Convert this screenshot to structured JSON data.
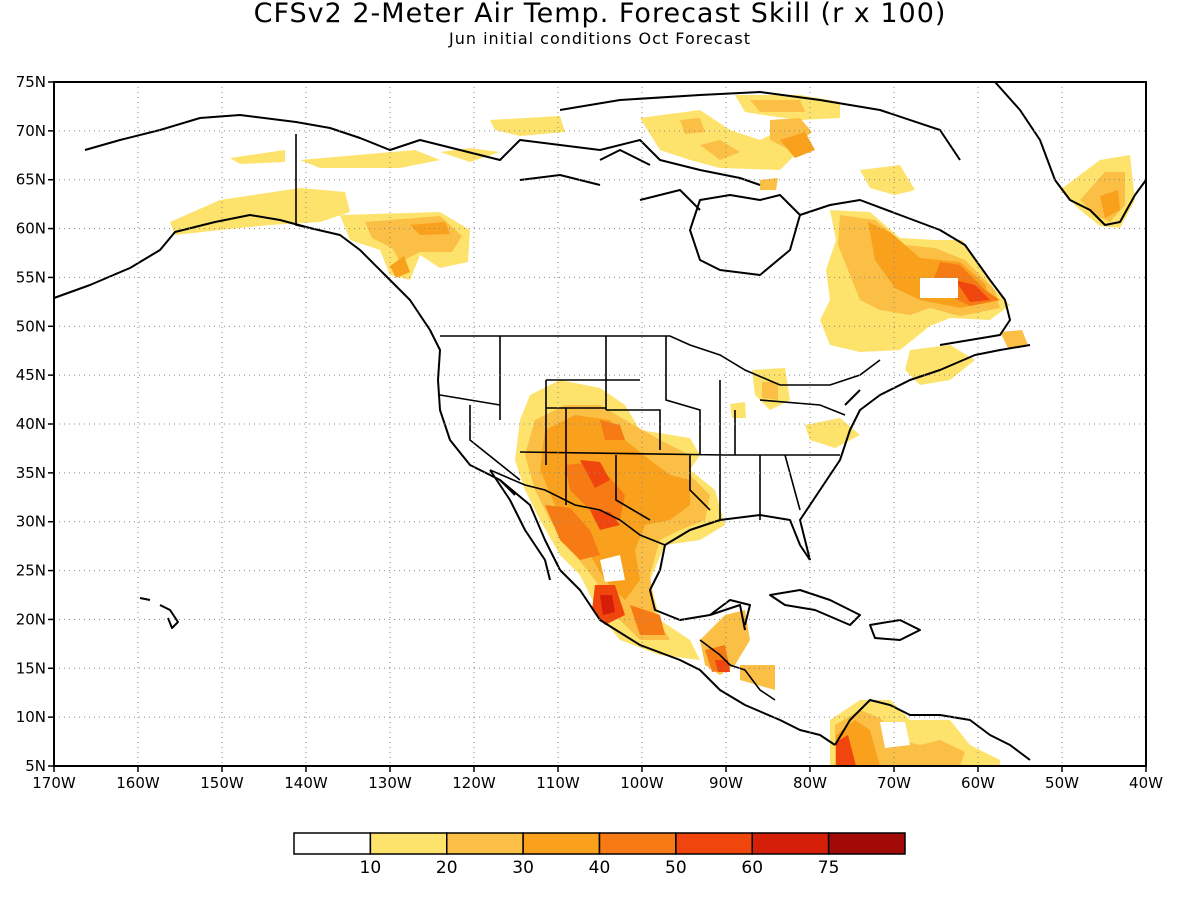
{
  "title": "CFSv2 2-Meter Air Temp. Forecast Skill (r x 100)",
  "subtitle": "Jun initial conditions  Oct Forecast",
  "map": {
    "lon_min": -170,
    "lon_max": -40,
    "lat_min": 5,
    "lat_max": 75,
    "lat_ticks": [
      "5N",
      "10N",
      "15N",
      "20N",
      "25N",
      "30N",
      "35N",
      "40N",
      "45N",
      "50N",
      "55N",
      "60N",
      "65N",
      "70N",
      "75N"
    ],
    "lon_ticks": [
      "170W",
      "160W",
      "150W",
      "140W",
      "130W",
      "120W",
      "110W",
      "100W",
      "90W",
      "80W",
      "70W",
      "60W",
      "50W",
      "40W"
    ],
    "gridlines": "dotted"
  },
  "colorbar": {
    "labels": [
      "10",
      "20",
      "30",
      "40",
      "50",
      "60",
      "75"
    ],
    "colors": [
      "#ffffff",
      "#fde26c",
      "#fbbf45",
      "#f9a01c",
      "#f77b14",
      "#f0460e",
      "#d61f08",
      "#a10a06"
    ]
  },
  "regions": [
    {
      "name": "sw-us-mexico",
      "level": "30-40"
    },
    {
      "name": "west-mexico-pocket",
      "level": "50-60"
    },
    {
      "name": "labrador-quebec",
      "level": "40-50"
    },
    {
      "name": "northern-colombia-venezuela",
      "level": "50-60"
    },
    {
      "name": "greenland-south",
      "level": "20-40"
    },
    {
      "name": "alaska-canada-west",
      "level": "10-30"
    },
    {
      "name": "arctic-islands",
      "level": "20-40"
    }
  ]
}
